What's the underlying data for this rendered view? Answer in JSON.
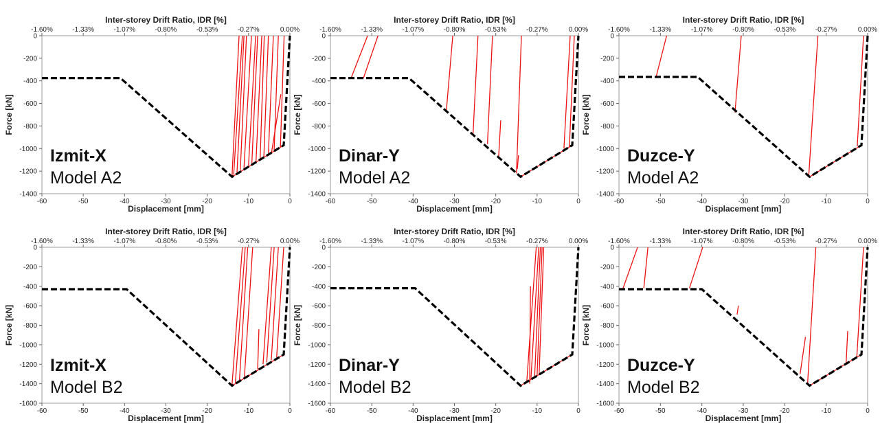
{
  "chart_data": [
    {
      "type": "line",
      "annotation": {
        "title": "Izmit-X",
        "subtitle": "Model A2"
      },
      "xlabel": "Displacement [mm]",
      "x2label": "Inter-storey Drift Ratio, IDR [%]",
      "ylabel": "Force [kN]",
      "xlim": [
        -60,
        0
      ],
      "ylim": [
        -1400,
        0
      ],
      "xticks": [
        -60,
        -50,
        -40,
        -30,
        -20,
        -10,
        0
      ],
      "x2ticks": [
        "-1.60%",
        "-1.33%",
        "-1.07%",
        "-0.80%",
        "-0.53%",
        "-0.27%",
        "0.00%"
      ],
      "yticks": [
        -1400,
        -1200,
        -1000,
        -800,
        -600,
        -400,
        -200,
        0
      ],
      "grid": false,
      "series": [
        {
          "style": "envelope",
          "color": "#000000",
          "x": [
            -60,
            -41,
            -14,
            -1.5,
            0
          ],
          "y": [
            -375,
            -375,
            -1250,
            -970,
            0
          ]
        },
        {
          "style": "response",
          "color": "#ee1111",
          "segments": [
            {
              "x": [
                -14,
                -12.3
              ],
              "y": [
                -1240,
                0
              ]
            },
            {
              "x": [
                -13.6,
                -11.5
              ],
              "y": [
                -1230,
                0
              ]
            },
            {
              "x": [
                -12.8,
                -11.1
              ],
              "y": [
                -1210,
                0
              ]
            },
            {
              "x": [
                -12,
                -10.5
              ],
              "y": [
                -1190,
                0
              ]
            },
            {
              "x": [
                -11.1,
                -9.3
              ],
              "y": [
                -1170,
                0
              ]
            },
            {
              "x": [
                -10,
                -8.3
              ],
              "y": [
                -1150,
                0
              ]
            },
            {
              "x": [
                -9.2,
                -7.8
              ],
              "y": [
                -1130,
                0
              ]
            },
            {
              "x": [
                -8.2,
                -6.8
              ],
              "y": [
                -1110,
                0
              ]
            },
            {
              "x": [
                -7.2,
                -6.2
              ],
              "y": [
                -1090,
                0
              ]
            },
            {
              "x": [
                -6.3,
                -5.2
              ],
              "y": [
                -1070,
                0
              ]
            },
            {
              "x": [
                -5.2,
                -4.0
              ],
              "y": [
                -1040,
                0
              ]
            },
            {
              "x": [
                -3.8,
                -2.8
              ],
              "y": [
                -1010,
                0
              ]
            },
            {
              "x": [
                -2.3,
                -1.4
              ],
              "y": [
                -985,
                0
              ]
            },
            {
              "x": [
                -4.5,
                -2.2
              ],
              "y": [
                -1050,
                -520
              ]
            },
            {
              "x": [
                -14,
                -1.5
              ],
              "y": [
                -1250,
                -970
              ]
            }
          ]
        }
      ]
    },
    {
      "type": "line",
      "annotation": {
        "title": "Dinar-Y",
        "subtitle": "Model A2"
      },
      "xlabel": "Displacement [mm]",
      "x2label": "Inter-storey Drift Ratio, IDR [%]",
      "ylabel": "Force [kN]",
      "xlim": [
        -60,
        0
      ],
      "ylim": [
        -1400,
        0
      ],
      "xticks": [
        -60,
        -50,
        -40,
        -30,
        -20,
        -10,
        0
      ],
      "x2ticks": [
        "-1.60%",
        "-1.33%",
        "-1.07%",
        "-0.80%",
        "-0.53%",
        "-0.27%",
        "0.00%"
      ],
      "yticks": [
        -1400,
        -1200,
        -1000,
        -800,
        -600,
        -400,
        -200,
        0
      ],
      "grid": false,
      "series": [
        {
          "style": "envelope",
          "color": "#000000",
          "x": [
            -60,
            -41,
            -14,
            -1.5,
            0
          ],
          "y": [
            -375,
            -375,
            -1250,
            -970,
            0
          ]
        },
        {
          "style": "response",
          "color": "#ee1111",
          "segments": [
            {
              "x": [
                -55,
                -51
              ],
              "y": [
                -375,
                0
              ]
            },
            {
              "x": [
                -52,
                -48.5
              ],
              "y": [
                -375,
                0
              ]
            },
            {
              "x": [
                -32,
                -30.4
              ],
              "y": [
                -680,
                0
              ]
            },
            {
              "x": [
                -25.5,
                -24.3
              ],
              "y": [
                -870,
                0
              ]
            },
            {
              "x": [
                -22,
                -20.8
              ],
              "y": [
                -960,
                0
              ]
            },
            {
              "x": [
                -15,
                -13.8
              ],
              "y": [
                -1220,
                0
              ]
            },
            {
              "x": [
                -3.5,
                -2.0
              ],
              "y": [
                -1000,
                0
              ]
            },
            {
              "x": [
                -2.2,
                -1.0
              ],
              "y": [
                -985,
                0
              ]
            },
            {
              "x": [
                -19.3,
                -18.8
              ],
              "y": [
                -1070,
                -750
              ]
            },
            {
              "x": [
                -14.8,
                -14.5
              ],
              "y": [
                -1180,
                -1060
              ]
            },
            {
              "x": [
                -14,
                -1.5
              ],
              "y": [
                -1250,
                -970
              ]
            }
          ]
        }
      ]
    },
    {
      "type": "line",
      "annotation": {
        "title": "Duzce-Y",
        "subtitle": "Model A2"
      },
      "xlabel": "Displacement [mm]",
      "x2label": "Inter-storey Drift Ratio, IDR [%]",
      "ylabel": "Force [kN]",
      "xlim": [
        -60,
        0
      ],
      "ylim": [
        -1400,
        0
      ],
      "xticks": [
        -60,
        -50,
        -40,
        -30,
        -20,
        -10,
        0
      ],
      "x2ticks": [
        "-1.60%",
        "-1.33%",
        "-1.07%",
        "-0.80%",
        "-0.53%",
        "-0.27%",
        "0.00%"
      ],
      "yticks": [
        -1400,
        -1200,
        -1000,
        -800,
        -600,
        -400,
        -200,
        0
      ],
      "grid": false,
      "series": [
        {
          "style": "envelope",
          "color": "#000000",
          "x": [
            -60,
            -41,
            -14,
            -1.5,
            0
          ],
          "y": [
            -365,
            -365,
            -1250,
            -970,
            0
          ]
        },
        {
          "style": "response",
          "color": "#ee1111",
          "segments": [
            {
              "x": [
                -51,
                -48.5
              ],
              "y": [
                -360,
                0
              ]
            },
            {
              "x": [
                -32,
                -30.5
              ],
              "y": [
                -680,
                0
              ]
            },
            {
              "x": [
                -14.2,
                -12.0
              ],
              "y": [
                -1240,
                0
              ]
            },
            {
              "x": [
                -2.5,
                -1.0
              ],
              "y": [
                -980,
                0
              ]
            },
            {
              "x": [
                -14,
                -1.5
              ],
              "y": [
                -1250,
                -970
              ]
            }
          ]
        }
      ]
    },
    {
      "type": "line",
      "annotation": {
        "title": "Izmit-X",
        "subtitle": "Model B2"
      },
      "xlabel": "Displacement [mm]",
      "x2label": "Inter-storey Drift Ratio, IDR [%]",
      "ylabel": "Force [kN]",
      "xlim": [
        -60,
        0
      ],
      "ylim": [
        -1600,
        0
      ],
      "xticks": [
        -60,
        -50,
        -40,
        -30,
        -20,
        -10,
        0
      ],
      "x2ticks": [
        "-1.60%",
        "-1.33%",
        "-1.07%",
        "-0.80%",
        "-0.53%",
        "-0.27%",
        "0.00%"
      ],
      "yticks": [
        -1600,
        -1400,
        -1200,
        -1000,
        -800,
        -600,
        -400,
        -200,
        0
      ],
      "grid": false,
      "series": [
        {
          "style": "envelope",
          "color": "#000000",
          "x": [
            -60,
            -39.5,
            -14,
            -1.5,
            0
          ],
          "y": [
            -430,
            -430,
            -1420,
            -1100,
            0
          ]
        },
        {
          "style": "response",
          "color": "#ee1111",
          "segments": [
            {
              "x": [
                -14,
                -11.5
              ],
              "y": [
                -1410,
                0
              ]
            },
            {
              "x": [
                -13.2,
                -10.8
              ],
              "y": [
                -1390,
                0
              ]
            },
            {
              "x": [
                -12.2,
                -10.2
              ],
              "y": [
                -1360,
                0
              ]
            },
            {
              "x": [
                -11,
                -9.0
              ],
              "y": [
                -1330,
                0
              ]
            },
            {
              "x": [
                -6.5,
                -4.5
              ],
              "y": [
                -1200,
                0
              ]
            },
            {
              "x": [
                -5.6,
                -3.8
              ],
              "y": [
                -1180,
                0
              ]
            },
            {
              "x": [
                -4.5,
                -2.8
              ],
              "y": [
                -1160,
                0
              ]
            },
            {
              "x": [
                -3.2,
                -1.5
              ],
              "y": [
                -1130,
                0
              ]
            },
            {
              "x": [
                -7.8,
                -7.5
              ],
              "y": [
                -1250,
                -840
              ]
            },
            {
              "x": [
                -14,
                -1.5
              ],
              "y": [
                -1420,
                -1100
              ]
            }
          ]
        }
      ]
    },
    {
      "type": "line",
      "annotation": {
        "title": "Dinar-Y",
        "subtitle": "Model B2"
      },
      "xlabel": "Displacement [mm]",
      "x2label": "Inter-storey Drift Ratio, IDR [%]",
      "ylabel": "Force [kN]",
      "xlim": [
        -60,
        0
      ],
      "ylim": [
        -1600,
        0
      ],
      "xticks": [
        -60,
        -50,
        -40,
        -30,
        -20,
        -10,
        0
      ],
      "x2ticks": [
        "-1.60%",
        "-1.33%",
        "-1.07%",
        "-0.80%",
        "-0.53%",
        "-0.27%",
        "0.00%"
      ],
      "yticks": [
        -1600,
        -1400,
        -1200,
        -1000,
        -800,
        -600,
        -400,
        -200,
        0
      ],
      "grid": false,
      "series": [
        {
          "style": "envelope",
          "color": "#000000",
          "x": [
            -60,
            -39.5,
            -14,
            -1.5,
            0
          ],
          "y": [
            -420,
            -420,
            -1420,
            -1100,
            0
          ]
        },
        {
          "style": "response",
          "color": "#ee1111",
          "segments": [
            {
              "x": [
                -12.5,
                -10.2
              ],
              "y": [
                -1380,
                0
              ]
            },
            {
              "x": [
                -11.5,
                -9.6
              ],
              "y": [
                -1360,
                0
              ]
            },
            {
              "x": [
                -10.6,
                -9.2
              ],
              "y": [
                -1340,
                0
              ]
            },
            {
              "x": [
                -10,
                -8.8
              ],
              "y": [
                -1320,
                0
              ]
            },
            {
              "x": [
                -9.5,
                -8.4
              ],
              "y": [
                -1300,
                0
              ]
            },
            {
              "x": [
                -11.8,
                -11.6
              ],
              "y": [
                -1400,
                -400
              ]
            },
            {
              "x": [
                -14,
                -1.5
              ],
              "y": [
                -1420,
                -1100
              ]
            }
          ]
        }
      ]
    },
    {
      "type": "line",
      "annotation": {
        "title": "Duzce-Y",
        "subtitle": "Model B2"
      },
      "xlabel": "Displacement [mm]",
      "x2label": "Inter-storey Drift Ratio, IDR [%]",
      "ylabel": "Force [kN]",
      "xlim": [
        -60,
        0
      ],
      "ylim": [
        -1600,
        0
      ],
      "xticks": [
        -60,
        -50,
        -40,
        -30,
        -20,
        -10,
        0
      ],
      "x2ticks": [
        "-1.60%",
        "-1.33%",
        "-1.07%",
        "-0.80%",
        "-0.53%",
        "-0.27%",
        "0.00%"
      ],
      "yticks": [
        -1600,
        -1400,
        -1200,
        -1000,
        -800,
        -600,
        -400,
        -200,
        0
      ],
      "grid": false,
      "series": [
        {
          "style": "envelope",
          "color": "#000000",
          "x": [
            -60,
            -40,
            -14,
            -1.5,
            0
          ],
          "y": [
            -430,
            -430,
            -1420,
            -1100,
            0
          ]
        },
        {
          "style": "response",
          "color": "#ee1111",
          "segments": [
            {
              "x": [
                -59,
                -55.5
              ],
              "y": [
                -420,
                0
              ]
            },
            {
              "x": [
                -54,
                -53
              ],
              "y": [
                -420,
                0
              ]
            },
            {
              "x": [
                -43,
                -39.8
              ],
              "y": [
                -420,
                0
              ]
            },
            {
              "x": [
                -31.5,
                -31.2
              ],
              "y": [
                -690,
                -600
              ]
            },
            {
              "x": [
                -16.3,
                -15
              ],
              "y": [
                -1300,
                -920
              ]
            },
            {
              "x": [
                -14.5,
                -12.5
              ],
              "y": [
                -1410,
                0
              ]
            },
            {
              "x": [
                -5.2,
                -4.8
              ],
              "y": [
                -1200,
                -860
              ]
            },
            {
              "x": [
                -2.6,
                -1.0
              ],
              "y": [
                -1120,
                0
              ]
            },
            {
              "x": [
                -14,
                -1.5
              ],
              "y": [
                -1420,
                -1100
              ]
            }
          ]
        }
      ]
    }
  ]
}
